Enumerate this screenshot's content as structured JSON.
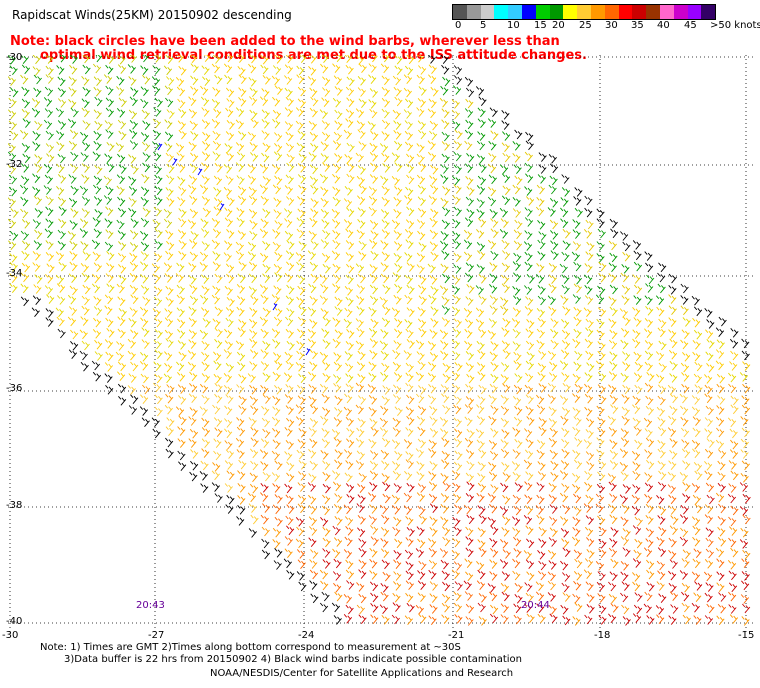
{
  "title": "Rapidscat Winds(25KM) 20150902 descending",
  "note": {
    "line1": "Note: black circles have been added to the wind barbs, wherever less than",
    "line2": "optimal wind retrieval conditions are met due to the ISS attitude changes."
  },
  "legend": {
    "labels": [
      "0",
      "5",
      "10",
      "15",
      "20",
      "25",
      "30",
      "35",
      "40",
      "45",
      ">50 knots"
    ],
    "colors": [
      "#555555",
      "#999999",
      "#cccccc",
      "#00ffff",
      "#33ccff",
      "#0000ff",
      "#00cc00",
      "#009900",
      "#ffff00",
      "#ffcc33",
      "#ff9900",
      "#ff6600",
      "#ff0000",
      "#cc0000",
      "#993300",
      "#ff66cc",
      "#cc00cc",
      "#9900ff",
      "#330066"
    ]
  },
  "axes": {
    "lat_labels": [
      "-30",
      "-32",
      "-34",
      "-36",
      "-38",
      "-40"
    ],
    "lon_labels": [
      "-30",
      "-27",
      "-24",
      "-21",
      "-18",
      "-15"
    ]
  },
  "times": [
    "20:43",
    "20:44"
  ],
  "footer": {
    "line1": "Note: 1) Times are GMT 2)Times along bottom correspond to measurement at ~30S",
    "line2": "3)Data buffer is 22 hrs from 20150902 4) Black wind barbs indicate possible contamination",
    "credit": "NOAA/NESDIS/Center for Satellite Applications and Research"
  }
}
